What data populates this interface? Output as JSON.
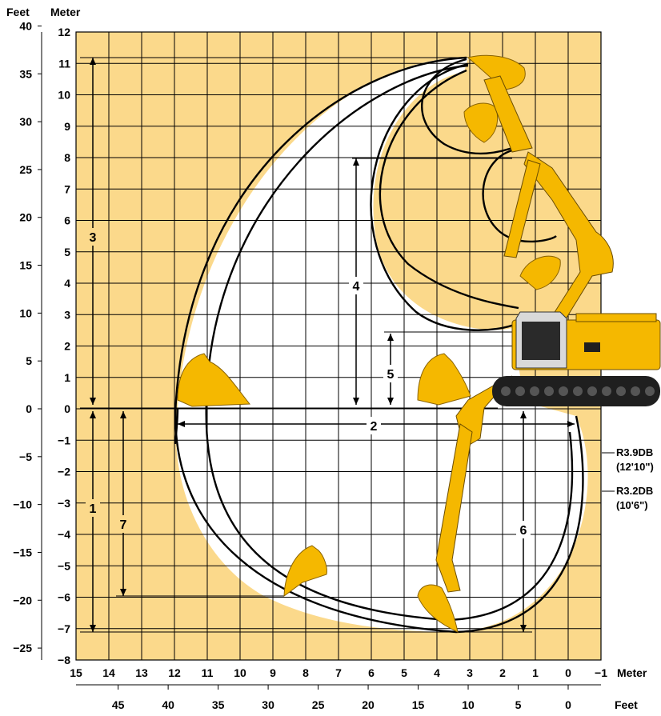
{
  "header": {
    "feet_label": "Feet",
    "meter_label": "Meter"
  },
  "axes": {
    "meter_y_ticks": [
      "12",
      "11",
      "10",
      "9",
      "8",
      "7",
      "6",
      "5",
      "4",
      "3",
      "2",
      "1",
      "0",
      "−1",
      "−2",
      "−3",
      "−4",
      "−5",
      "−6",
      "−7",
      "−8"
    ],
    "feet_y_ticks": [
      "40",
      "35",
      "30",
      "25",
      "20",
      "15",
      "10",
      "5",
      "0",
      "−5",
      "−10",
      "−15",
      "−20",
      "−25"
    ],
    "meter_x_ticks": [
      "15",
      "14",
      "13",
      "12",
      "11",
      "10",
      "9",
      "8",
      "7",
      "6",
      "5",
      "4",
      "3",
      "2",
      "1",
      "0",
      "−1"
    ],
    "meter_x_label": "Meter",
    "feet_x_ticks": [
      "45",
      "40",
      "35",
      "30",
      "25",
      "20",
      "15",
      "10",
      "5",
      "0"
    ],
    "feet_x_label": "Feet"
  },
  "dimensions": {
    "d1": "1",
    "d2": "2",
    "d3": "3",
    "d4": "4",
    "d5": "5",
    "d6": "6",
    "d7": "7"
  },
  "boom_labels": {
    "r39_name": "R3.9DB",
    "r39_size": "(12'10\")",
    "r32_name": "R3.2DB",
    "r32_size": "(10'6\")"
  },
  "colors": {
    "grid_fill": "#fbd98b",
    "machine_yellow": "#f5b800",
    "track": "#1f1f1f",
    "line": "#000000"
  }
}
